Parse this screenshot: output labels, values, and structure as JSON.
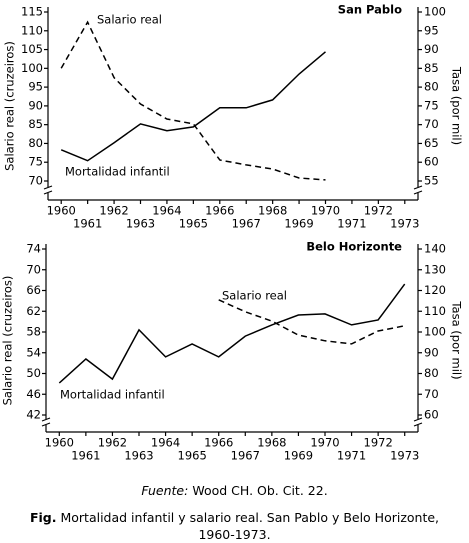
{
  "chart_data": [
    {
      "type": "line",
      "title": "San Pablo",
      "ylabel": "Salario real (cruzeiros)",
      "y2label": "Tasa (por mil)",
      "xlim": [
        1959.5,
        1973.5
      ],
      "xticks": [
        1960,
        1961,
        1962,
        1963,
        1964,
        1965,
        1966,
        1967,
        1968,
        1969,
        1970,
        1971,
        1972,
        1973
      ],
      "ylim": [
        70,
        115
      ],
      "yticks": [
        70,
        75,
        80,
        85,
        90,
        95,
        100,
        105,
        110,
        115
      ],
      "y2lim": [
        55,
        100
      ],
      "y2ticks": [
        55,
        60,
        65,
        70,
        75,
        80,
        85,
        90,
        95,
        100
      ],
      "series": [
        {
          "name": "Salario real",
          "color": "#000000",
          "dashed": true,
          "x": [
            1960,
            1961,
            1962,
            1963,
            1964,
            1965,
            1966,
            1967,
            1968,
            1969,
            1970
          ],
          "values": [
            100,
            112.3,
            97.5,
            90.5,
            86.5,
            85.2,
            75.6,
            74.3,
            73.2,
            70.8,
            70.3
          ]
        },
        {
          "name": "Mortalidad infantil",
          "color": "#000000",
          "dashed": false,
          "axis": "y2",
          "x": [
            1960,
            1961,
            1962,
            1963,
            1964,
            1965,
            1966,
            1967,
            1968,
            1969,
            1970
          ],
          "values": [
            63.3,
            60.4,
            65.2,
            70.2,
            68.4,
            69.4,
            74.5,
            74.5,
            76.6,
            83.5,
            89.4
          ]
        }
      ]
    },
    {
      "type": "line",
      "title": "Belo Horizonte",
      "ylabel": "Salario real (cruzeiros)",
      "y2label": "Tasa (por mil)",
      "xlim": [
        1959.5,
        1973.5
      ],
      "xticks": [
        1960,
        1961,
        1962,
        1963,
        1964,
        1965,
        1966,
        1967,
        1968,
        1969,
        1970,
        1971,
        1972,
        1973
      ],
      "ylim": [
        42,
        74
      ],
      "yticks": [
        42,
        46,
        50,
        54,
        58,
        62,
        66,
        70,
        74
      ],
      "y2lim": [
        60,
        140
      ],
      "y2ticks": [
        60,
        70,
        80,
        90,
        100,
        110,
        120,
        130,
        140
      ],
      "series": [
        {
          "name": "Salario real",
          "color": "#000000",
          "dashed": true,
          "x": [
            1966,
            1967,
            1968,
            1969,
            1970,
            1971,
            1972,
            1973
          ],
          "values": [
            64.2,
            61.9,
            60.1,
            57.4,
            56.3,
            55.7,
            58.2,
            59.2
          ]
        },
        {
          "name": "Mortalidad infantil",
          "color": "#000000",
          "dashed": false,
          "axis": "y2",
          "x": [
            1960,
            1961,
            1962,
            1963,
            1964,
            1965,
            1966,
            1967,
            1968,
            1969,
            1970,
            1971,
            1972,
            1973
          ],
          "values": [
            75.4,
            87,
            77.3,
            101,
            88,
            94.2,
            88,
            98,
            103.4,
            108.2,
            108.7,
            103.4,
            105.8,
            123.1
          ]
        }
      ]
    }
  ],
  "source": {
    "label": "Fuente:",
    "text": "Wood CH. Ob. Cit. 22."
  },
  "caption": {
    "label": "Fig.",
    "text": "Mortalidad infantil y salario real. San Pablo y Belo Horizonte, 1960-1973."
  }
}
